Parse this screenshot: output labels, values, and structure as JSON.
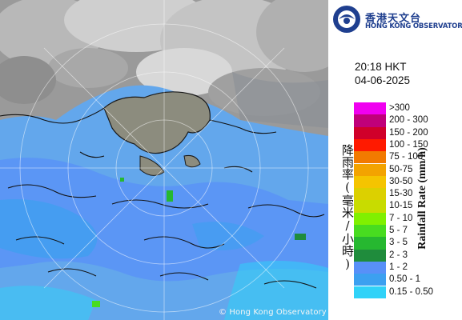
{
  "map": {
    "copyright": "© Hong Kong Observatory"
  },
  "header": {
    "logo_cn": "香港天文台",
    "logo_en": "HONG KONG OBSERVATORY",
    "time": "20:18 HKT",
    "date": "04-06-2025"
  },
  "legend": {
    "title_cn": "降雨率(毫米/小時)",
    "title_en": "Rainfall Rate (mm/h)",
    "items": [
      {
        "label": ">300",
        "color": "#f000f0"
      },
      {
        "label": "200 - 300",
        "color": "#c0007a"
      },
      {
        "label": "150 - 200",
        "color": "#d0002a"
      },
      {
        "label": "100 - 150",
        "color": "#ff1a00"
      },
      {
        "label": "75 - 100",
        "color": "#f27a00"
      },
      {
        "label": "50-75",
        "color": "#f3a300"
      },
      {
        "label": "30-50",
        "color": "#f5c400"
      },
      {
        "label": "15-30",
        "color": "#dcd000"
      },
      {
        "label": "10-15",
        "color": "#c8dc00"
      },
      {
        "label": "7 - 10",
        "color": "#80f000"
      },
      {
        "label": "5 - 7",
        "color": "#48dc20"
      },
      {
        "label": "3 - 5",
        "color": "#26b830"
      },
      {
        "label": "2 - 3",
        "color": "#1f8c3c"
      },
      {
        "label": "1 - 2",
        "color": "#5890f8"
      },
      {
        "label": "0.50 - 1",
        "color": "#3ca0f0"
      },
      {
        "label": "0.15 - 0.50",
        "color": "#30d2f8"
      }
    ]
  }
}
